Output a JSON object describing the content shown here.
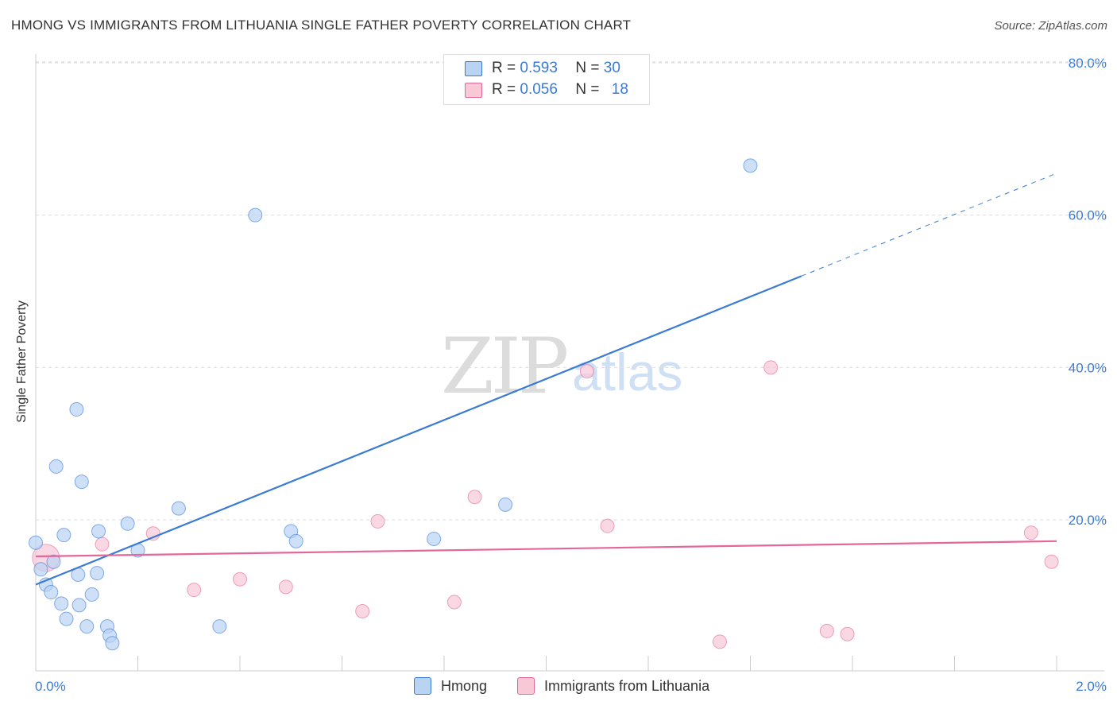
{
  "title": "HMONG VS IMMIGRANTS FROM LITHUANIA SINGLE FATHER POVERTY CORRELATION CHART",
  "source": "Source: ZipAtlas.com",
  "watermark": {
    "part1": "ZIP",
    "part2": "atlas"
  },
  "colors": {
    "blue": "#3a7bd5",
    "blue_fill": "#b9d3f3",
    "pink": "#e4679a",
    "pink_fill": "#f8c8d7",
    "grid": "#dddddd"
  },
  "legend": {
    "series": [
      {
        "r_label": "R =",
        "r_value": "0.593",
        "n_label": "N =",
        "n_value": "30"
      },
      {
        "r_label": "R =",
        "r_value": "0.056",
        "n_label": "N =",
        "n_value": "18"
      }
    ]
  },
  "chart_data": {
    "type": "scatter",
    "title": "HMONG VS IMMIGRANTS FROM LITHUANIA SINGLE FATHER POVERTY CORRELATION CHART",
    "xlabel": "",
    "ylabel": "Single Father Poverty",
    "xlim": [
      0,
      2.1
    ],
    "ylim": [
      -1,
      83
    ],
    "x_tick_labels": [
      "0.0%",
      "2.0%"
    ],
    "y_ticks": [
      20,
      40,
      60,
      80
    ],
    "y_tick_labels": [
      "20.0%",
      "40.0%",
      "60.0%",
      "80.0%"
    ],
    "series": [
      {
        "name": "Hmong",
        "points": [
          [
            0.0,
            17
          ],
          [
            0.01,
            13.5
          ],
          [
            0.02,
            11.5
          ],
          [
            0.03,
            10.5
          ],
          [
            0.035,
            14.5
          ],
          [
            0.04,
            27
          ],
          [
            0.05,
            9
          ],
          [
            0.055,
            18
          ],
          [
            0.06,
            7
          ],
          [
            0.08,
            34.5
          ],
          [
            0.083,
            12.8
          ],
          [
            0.085,
            8.8
          ],
          [
            0.09,
            25
          ],
          [
            0.1,
            6
          ],
          [
            0.11,
            10.2
          ],
          [
            0.12,
            13
          ],
          [
            0.123,
            18.5
          ],
          [
            0.14,
            6
          ],
          [
            0.145,
            4.8
          ],
          [
            0.15,
            3.8
          ],
          [
            0.18,
            19.5
          ],
          [
            0.2,
            16
          ],
          [
            0.28,
            21.5
          ],
          [
            0.36,
            6
          ],
          [
            0.43,
            60
          ],
          [
            0.5,
            18.5
          ],
          [
            0.51,
            17.2
          ],
          [
            0.78,
            17.5
          ],
          [
            0.92,
            22
          ],
          [
            1.4,
            66.5
          ]
        ],
        "trend": {
          "x0": 0.0,
          "y0": 11.5,
          "x1_solid": 1.5,
          "y1_solid": 52,
          "x1_dashed": 2.0,
          "y1_dashed": 65.5
        }
      },
      {
        "name": "Immigrants from Lithuania",
        "points": [
          [
            0.02,
            15
          ],
          [
            0.13,
            16.8
          ],
          [
            0.23,
            18.2
          ],
          [
            0.31,
            10.8
          ],
          [
            0.4,
            12.2
          ],
          [
            0.49,
            11.2
          ],
          [
            0.64,
            8
          ],
          [
            0.67,
            19.8
          ],
          [
            0.82,
            9.2
          ],
          [
            0.86,
            23
          ],
          [
            1.08,
            39.5
          ],
          [
            1.12,
            19.2
          ],
          [
            1.34,
            4
          ],
          [
            1.44,
            40
          ],
          [
            1.55,
            5.4
          ],
          [
            1.59,
            5
          ],
          [
            1.95,
            18.3
          ],
          [
            1.99,
            14.5
          ]
        ],
        "trend": {
          "x0": 0.0,
          "y0": 15.2,
          "x1_solid": 2.0,
          "y1_solid": 17.2
        }
      }
    ]
  }
}
